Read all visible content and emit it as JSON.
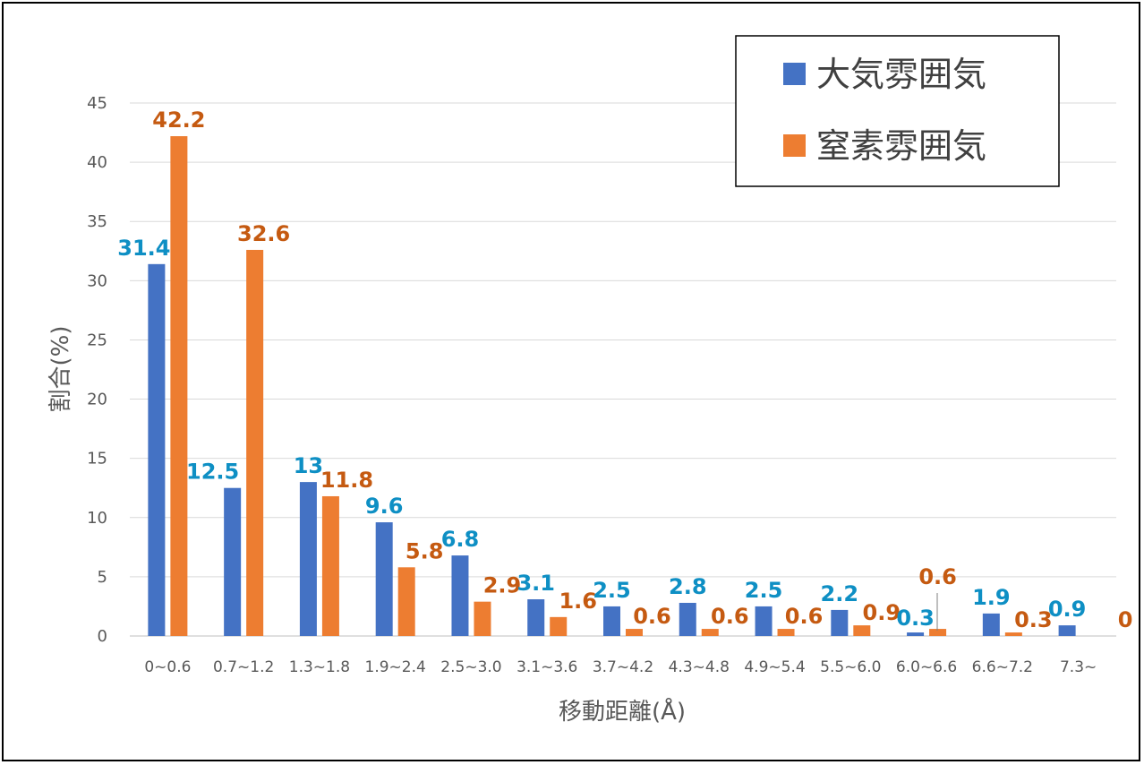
{
  "chart_data": {
    "type": "bar",
    "categories": [
      "0~0.6",
      "0.7~1.2",
      "1.3~1.8",
      "1.9~2.4",
      "2.5~3.0",
      "3.1~3.6",
      "3.7~4.2",
      "4.3~4.8",
      "4.9~5.4",
      "5.5~6.0",
      "6.0~6.6",
      "6.6~7.2",
      "7.3~"
    ],
    "series": [
      {
        "name": "大気雰囲気",
        "color": "#4472C4",
        "label_color": "#0E8FC4",
        "values": [
          31.4,
          12.5,
          13,
          9.6,
          6.8,
          3.1,
          2.5,
          2.8,
          2.5,
          2.2,
          0.3,
          1.9,
          0.9
        ],
        "labels": [
          "31.4",
          "12.5",
          "13",
          "9.6",
          "6.8",
          "3.1",
          "2.5",
          "2.8",
          "2.5",
          "2.2",
          "0.3",
          "1.9",
          "0.9"
        ]
      },
      {
        "name": "窒素雰囲気",
        "color": "#ED7D31",
        "label_color": "#C55A11",
        "values": [
          42.2,
          32.6,
          11.8,
          5.8,
          2.9,
          1.6,
          0.6,
          0.6,
          0.6,
          0.9,
          0.6,
          0.3,
          0
        ],
        "labels": [
          "42.2",
          "32.6",
          "11.8",
          "5.8",
          "2.9",
          "1.6",
          "0.6",
          "0.6",
          "0.6",
          "0.9",
          "0.6",
          "0.3",
          "0"
        ]
      }
    ],
    "xlabel": "移動距離(Å)",
    "ylabel": "割合(%)",
    "ylim": [
      0,
      45
    ],
    "yticks": [
      "0",
      "5",
      "10",
      "15",
      "20",
      "25",
      "30",
      "35",
      "40",
      "45"
    ],
    "grid": true,
    "legend_position": "top-right"
  }
}
